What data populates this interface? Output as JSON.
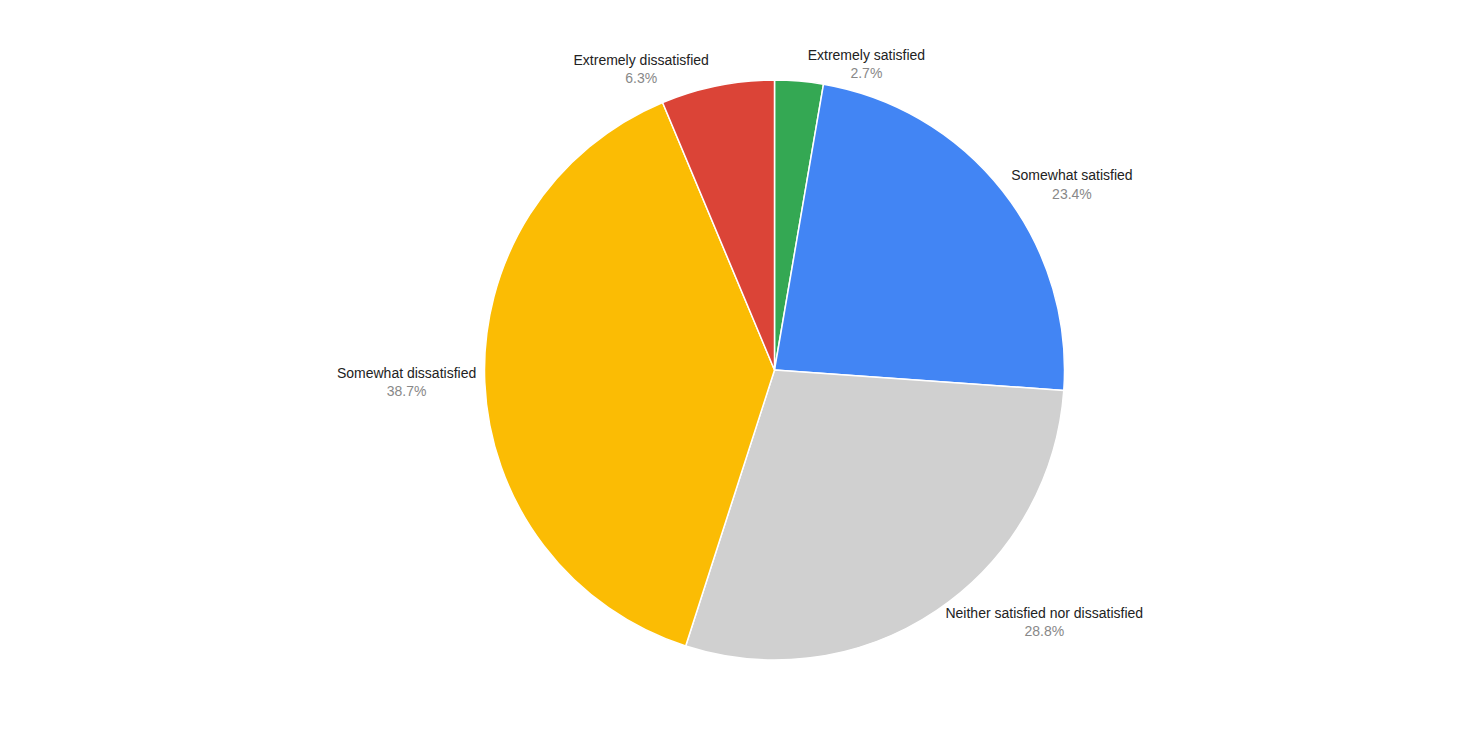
{
  "chart_data": {
    "type": "pie",
    "categories": [
      "Extremely satisfied",
      "Somewhat satisfied",
      "Neither satisfied nor dissatisfied",
      "Somewhat dissatisfied",
      "Extremely dissatisfied"
    ],
    "values": [
      2.7,
      23.4,
      28.8,
      38.7,
      6.3
    ],
    "value_labels": [
      "2.7%",
      "23.4%",
      "28.8%",
      "38.7%",
      "6.3%"
    ],
    "colors": [
      "#34A853",
      "#4285F4",
      "#d0d0d0",
      "#FBBC04",
      "#DB4437"
    ],
    "data_labels": true
  }
}
